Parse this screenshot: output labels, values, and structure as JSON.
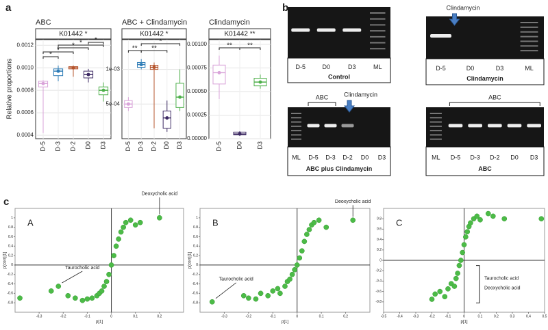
{
  "panels": {
    "a": {
      "label": "a",
      "y_label": "Relative proportions",
      "charts": [
        {
          "type": "box",
          "title": "ABC",
          "strip": "K01442 *",
          "categories": [
            "D-5",
            "D-3",
            "D-2",
            "D0",
            "D3"
          ],
          "colors": [
            "#d9a3d9",
            "#2c7bb6",
            "#b5542c",
            "#3d2a63",
            "#4daf4a"
          ],
          "boxes": [
            {
              "min": 0.00042,
              "q1": 0.00083,
              "median": 0.00086,
              "q3": 0.00088,
              "max": 0.00089
            },
            {
              "min": 0.00088,
              "q1": 0.00093,
              "median": 0.00097,
              "q3": 0.00099,
              "max": 0.00102
            },
            {
              "min": 0.00092,
              "q1": 0.00099,
              "median": 0.001,
              "q3": 0.00101,
              "max": 0.00102
            },
            {
              "min": 0.00087,
              "q1": 0.00091,
              "median": 0.00094,
              "q3": 0.00097,
              "max": 0.00099
            },
            {
              "min": 0.0007,
              "q1": 0.00076,
              "median": 0.0008,
              "q3": 0.00083,
              "max": 0.00087
            }
          ],
          "ylim": [
            0.00037,
            0.00125
          ],
          "yticks": [
            0.0004,
            0.0006,
            0.0008,
            {
              "value": 0.001,
              "label": "0.0010"
            },
            0.0012
          ],
          "significance": [
            "*",
            "*",
            "*",
            "*",
            "*"
          ]
        },
        {
          "type": "box",
          "title": "ABC + Clindamycin",
          "strip": "K01442 *",
          "categories": [
            "D-5",
            "D-3",
            "D-2",
            "D0",
            "D3"
          ],
          "colors": [
            "#d9a3d9",
            "#2c7bb6",
            "#b5542c",
            "#3d2a63",
            "#4daf4a"
          ],
          "boxes": [
            {
              "min": 0.0004,
              "q1": 0.00045,
              "median": 0.0005,
              "q3": 0.00055,
              "max": 0.0006
            },
            {
              "min": 0.001,
              "q1": 0.00103,
              "median": 0.00107,
              "q3": 0.0011,
              "max": 0.00115
            },
            {
              "min": 0.00015,
              "q1": 0.001,
              "median": 0.00103,
              "q3": 0.00106,
              "max": 0.0011
            },
            {
              "min": 0.0001,
              "q1": 0.00015,
              "median": 0.0003,
              "q3": 0.0004,
              "max": 0.00055
            },
            {
              "min": 0.0004,
              "q1": 0.00045,
              "median": 0.0006,
              "q3": 0.0008,
              "max": 0.001
            }
          ],
          "ylim": [
            0,
            0.00143
          ],
          "yticks": [
            {
              "value": 0.0005,
              "label": "5e-04"
            },
            {
              "value": 0.001,
              "label": "1e-03"
            }
          ],
          "significance": [
            "**",
            "*",
            "**"
          ]
        },
        {
          "type": "box",
          "title": "Clindamycin",
          "strip": "K01442 **",
          "categories": [
            "D-5",
            "D0",
            "D3"
          ],
          "colors": [
            "#d9a3d9",
            "#3d2a63",
            "#4daf4a"
          ],
          "boxes": [
            {
              "min": 0.00042,
              "q1": 0.00058,
              "median": 0.0007,
              "q3": 0.00078,
              "max": 0.00088
            },
            {
              "min": 3e-05,
              "q1": 4e-05,
              "median": 5e-05,
              "q3": 7e-05,
              "max": 8e-05
            },
            {
              "min": 0.00053,
              "q1": 0.00056,
              "median": 0.0006,
              "q3": 0.00064,
              "max": 0.00068
            }
          ],
          "ylim": [
            0,
            0.00105
          ],
          "yticks": [
            {
              "value": 0,
              "label": "0.00000"
            },
            0.00025,
            {
              "value": 0.0005,
              "label": "0.00050"
            },
            0.00075,
            {
              "value": 0.001,
              "label": "0.00100"
            }
          ],
          "significance": [
            "**",
            "**"
          ]
        }
      ]
    },
    "b": {
      "label": "b",
      "gels": [
        {
          "caption": "Control",
          "lanes": [
            "D-5",
            "D0",
            "D3",
            "ML"
          ]
        },
        {
          "caption": "Clindamycin",
          "lanes": [
            "D-5",
            "D0",
            "D3",
            "ML"
          ],
          "arrow_label": "Clindamycin"
        },
        {
          "caption": "ABC plus Clindamycin",
          "lanes": [
            "ML",
            "D-5",
            "D-3",
            "D-2",
            "D0",
            "D3"
          ],
          "bracket_label": "ABC",
          "arrow_label": "Clindamycin"
        },
        {
          "caption": "ABC",
          "lanes": [
            "ML",
            "D-5",
            "D-3",
            "D-2",
            "D0",
            "D3"
          ],
          "bracket_label": "ABC"
        }
      ]
    },
    "c": {
      "label": "c",
      "charts": [
        {
          "type": "scatter",
          "panel_label": "A",
          "x_label": "p[1]",
          "y_label": "p(corr)[1]",
          "color": "#4cbb47",
          "x": [
            -0.38,
            -0.25,
            -0.22,
            -0.18,
            -0.15,
            -0.12,
            -0.1,
            -0.08,
            -0.06,
            -0.05,
            -0.04,
            -0.03,
            -0.02,
            -0.01,
            0,
            0.01,
            0.02,
            0.03,
            0.04,
            0.05,
            0.06,
            0.08,
            0.1,
            0.12,
            0.2
          ],
          "y": [
            -0.7,
            -0.55,
            -0.45,
            -0.65,
            -0.7,
            -0.75,
            -0.72,
            -0.7,
            -0.65,
            -0.6,
            -0.55,
            -0.45,
            -0.35,
            -0.2,
            0,
            0.2,
            0.4,
            0.55,
            0.7,
            0.8,
            0.9,
            0.95,
            0.85,
            0.9,
            1.0
          ],
          "xlim": [
            -0.4,
            0.3
          ],
          "ylim": [
            -1,
            1.2
          ],
          "xticks": [
            -0.3,
            -0.2,
            -0.1,
            0,
            0.1,
            0.2
          ],
          "yticks": [
            -0.8,
            -0.6,
            -0.4,
            -0.2,
            0,
            0.2,
            0.4,
            0.6,
            0.8,
            1
          ],
          "annotations": [
            {
              "text": "Deoxycholic acid",
              "x": 0.2,
              "y": 1.0
            },
            {
              "text": "Taurocholic acid",
              "x": -0.22,
              "y": -0.45
            }
          ]
        },
        {
          "type": "scatter",
          "panel_label": "B",
          "x_label": "p[1]",
          "y_label": "p(corr)[1]",
          "color": "#4cbb47",
          "x": [
            -0.35,
            -0.22,
            -0.2,
            -0.17,
            -0.15,
            -0.12,
            -0.1,
            -0.08,
            -0.07,
            -0.05,
            -0.04,
            -0.03,
            -0.02,
            -0.01,
            0,
            0.01,
            0.02,
            0.03,
            0.04,
            0.05,
            0.06,
            0.07,
            0.09,
            0.12,
            0.23
          ],
          "y": [
            -0.78,
            -0.65,
            -0.7,
            -0.72,
            -0.6,
            -0.65,
            -0.55,
            -0.5,
            -0.6,
            -0.45,
            -0.35,
            -0.3,
            -0.2,
            -0.1,
            0,
            0.15,
            0.3,
            0.5,
            0.65,
            0.75,
            0.85,
            0.9,
            0.95,
            0.8,
            0.95
          ],
          "xlim": [
            -0.4,
            0.3
          ],
          "ylim": [
            -1,
            1.2
          ],
          "xticks": [
            -0.3,
            -0.2,
            -0.1,
            0,
            0.1,
            0.2
          ],
          "yticks": [
            -0.8,
            -0.6,
            -0.4,
            -0.2,
            0,
            0.2,
            0.4,
            0.6,
            0.8,
            1
          ],
          "annotations": [
            {
              "text": "Deoxycholic acid",
              "x": 0.23,
              "y": 0.95
            },
            {
              "text": "Taurocholic acid",
              "x": -0.35,
              "y": -0.78
            }
          ]
        },
        {
          "type": "scatter",
          "panel_label": "C",
          "x_label": "p[1]",
          "color": "#4cbb47",
          "x": [
            -0.2,
            -0.18,
            -0.15,
            -0.12,
            -0.1,
            -0.08,
            -0.06,
            -0.05,
            -0.04,
            -0.03,
            -0.02,
            -0.01,
            0,
            0.01,
            0.02,
            0.03,
            0.04,
            0.06,
            0.08,
            0.1,
            0.15,
            0.18,
            0.25,
            0.48
          ],
          "y": [
            -0.75,
            -0.65,
            -0.6,
            -0.7,
            -0.55,
            -0.45,
            -0.5,
            -0.35,
            -0.25,
            -0.1,
            0,
            0.15,
            0.3,
            0.45,
            0.55,
            0.65,
            0.72,
            0.8,
            0.85,
            0.78,
            0.9,
            0.85,
            0.8,
            0.8
          ],
          "xlim": [
            -0.5,
            0.5
          ],
          "ylim": [
            -1,
            1
          ],
          "xticks": [
            -0.5,
            -0.4,
            -0.3,
            -0.2,
            -0.1,
            0,
            0.1,
            0.2,
            0.3,
            0.4,
            0.5
          ],
          "yticks": [
            -0.8,
            -0.6,
            -0.4,
            -0.2,
            0,
            0.2,
            0.4,
            0.6,
            0.8
          ],
          "bracket_labels": [
            "Taurocholic acid",
            "Deoxycholic acid"
          ]
        }
      ]
    }
  }
}
